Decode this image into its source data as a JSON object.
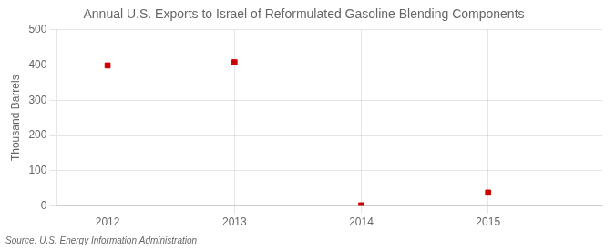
{
  "chart_data": {
    "type": "scatter",
    "title": "Annual U.S. Exports to Israel of Reformulated Gasoline Blending Components",
    "ylabel": "Thousand Barrels",
    "annotations": [
      "Source: U.S. Energy Information Administration"
    ],
    "x": [
      2012,
      2013,
      2014,
      2015
    ],
    "values": [
      399,
      408,
      2,
      38
    ],
    "color": "#cc0000",
    "marker": "square",
    "xlim": [
      2011.6,
      2015.9
    ],
    "xticks": [
      2012,
      2013,
      2014,
      2015
    ],
    "ylim": [
      0,
      500
    ],
    "yticks": [
      0,
      100,
      200,
      300,
      400,
      500
    ],
    "grid": true
  }
}
